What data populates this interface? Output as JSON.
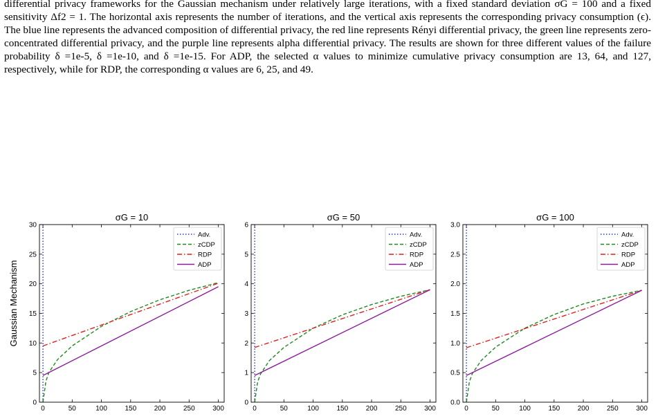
{
  "caption": {
    "text": "differential privacy frameworks for the Gaussian mechanism under relatively large iterations, with a fixed standard deviation σG = 100 and a fixed sensitivity Δf2 = 1. The horizontal axis represents the number of iterations, and the vertical axis represents the corresponding privacy consumption (ϵ). The blue line represents the advanced composition of differential privacy, the red line represents Rényi differential privacy, the green line represents zero-concentrated differential privacy, and the purple line represents alpha differential privacy. The results are shown for three different values of the failure probability δ =1e-5, δ =1e-10, and δ =1e-15. For ADP, the selected α values to minimize cumulative privacy consumption are 13, 64, and 127, respectively, while for RDP, the corresponding α values are 6, 25, and 49."
  },
  "ylabel": "Gaussian Mechanism",
  "colors": {
    "adv": "#2233dd",
    "zcdp": "#1e8a1e",
    "rdp": "#dd1f1f",
    "adp": "#8b1a9b"
  },
  "chart_data": [
    {
      "type": "line",
      "title": "σG = 10",
      "xlim": [
        -6,
        310
      ],
      "ylim": [
        0,
        30
      ],
      "xticks": [
        "0",
        "50",
        "100",
        "150",
        "200",
        "250",
        "300"
      ],
      "yticks": [
        "0",
        "5",
        "10",
        "15",
        "20",
        "25",
        "30"
      ],
      "legend": [
        "Adv.",
        "zCDP",
        "RDP",
        "ADP"
      ],
      "legend_position": "top-right",
      "series": [
        {
          "name": "Adv.",
          "style": "dotted",
          "x": [
            0,
            0
          ],
          "y": [
            0,
            30
          ]
        },
        {
          "name": "zCDP",
          "style": "dashed",
          "x": [
            0,
            5,
            10,
            25,
            50,
            100,
            150,
            200,
            250,
            300
          ],
          "y": [
            0,
            3.5,
            5,
            7.2,
            9.5,
            12.8,
            15.3,
            17.3,
            18.9,
            20.2
          ]
        },
        {
          "name": "RDP",
          "style": "dashdot",
          "x": [
            0,
            300
          ],
          "y": [
            9.5,
            20.1
          ]
        },
        {
          "name": "ADP",
          "style": "solid",
          "x": [
            0,
            300
          ],
          "y": [
            4.5,
            19.5
          ]
        }
      ]
    },
    {
      "type": "line",
      "title": "σG = 50",
      "xlim": [
        -6,
        310
      ],
      "ylim": [
        0,
        6
      ],
      "xticks": [
        "0",
        "50",
        "100",
        "150",
        "200",
        "250",
        "300"
      ],
      "yticks": [
        "0",
        "1",
        "2",
        "3",
        "4",
        "5",
        "6"
      ],
      "legend": [
        "Adv.",
        "zCDP",
        "RDP",
        "ADP"
      ],
      "legend_position": "top-right",
      "series": [
        {
          "name": "Adv.",
          "style": "dotted",
          "x": [
            0,
            0
          ],
          "y": [
            0,
            6
          ]
        },
        {
          "name": "zCDP",
          "style": "dashed",
          "x": [
            0,
            5,
            10,
            25,
            50,
            100,
            150,
            200,
            250,
            300
          ],
          "y": [
            0,
            0.68,
            0.95,
            1.4,
            1.85,
            2.5,
            2.95,
            3.3,
            3.58,
            3.8
          ]
        },
        {
          "name": "RDP",
          "style": "dashdot",
          "x": [
            0,
            300
          ],
          "y": [
            1.85,
            3.8
          ]
        },
        {
          "name": "ADP",
          "style": "solid",
          "x": [
            0,
            300
          ],
          "y": [
            0.9,
            3.8
          ]
        }
      ]
    },
    {
      "type": "line",
      "title": "σG = 100",
      "xlim": [
        -6,
        310
      ],
      "ylim": [
        0,
        3.0
      ],
      "xticks": [
        "0",
        "50",
        "100",
        "150",
        "200",
        "250",
        "300"
      ],
      "yticks": [
        "0.0",
        "0.5",
        "1.0",
        "1.5",
        "2.0",
        "2.5",
        "3.0"
      ],
      "legend": [
        "Adv.",
        "zCDP",
        "RDP",
        "ADP"
      ],
      "legend_position": "top-right",
      "series": [
        {
          "name": "Adv.",
          "style": "dotted",
          "x": [
            0,
            0
          ],
          "y": [
            0,
            3.0
          ]
        },
        {
          "name": "zCDP",
          "style": "dashed",
          "x": [
            0,
            5,
            10,
            25,
            50,
            100,
            150,
            200,
            250,
            300
          ],
          "y": [
            0,
            0.34,
            0.48,
            0.7,
            0.93,
            1.25,
            1.48,
            1.66,
            1.79,
            1.89
          ]
        },
        {
          "name": "RDP",
          "style": "dashdot",
          "x": [
            0,
            300
          ],
          "y": [
            0.92,
            1.89
          ]
        },
        {
          "name": "ADP",
          "style": "solid",
          "x": [
            0,
            300
          ],
          "y": [
            0.45,
            1.89
          ]
        }
      ]
    }
  ]
}
